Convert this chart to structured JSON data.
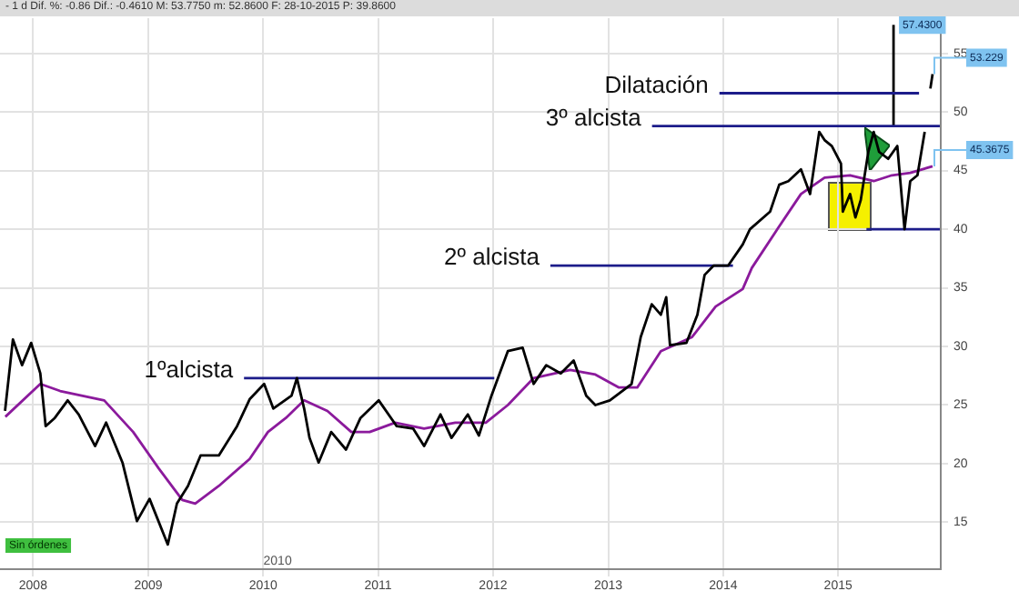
{
  "chart_data": {
    "type": "line",
    "subtitle": "- 1 d  Dif. %: -0.86  Dif.: -0.4610  M: 53.7750  m: 52.8600  F: 28-10-2015  P: 39.8600",
    "xlim": [
      "2007-09-18",
      "2015-11-23"
    ],
    "xticks": [
      {
        "value": "2008-01-01",
        "label": "2008"
      },
      {
        "value": "2009-01-01",
        "label": "2009"
      },
      {
        "value": "2010-01-01",
        "label": "2010"
      },
      {
        "value": "2011-01-01",
        "label": "2011"
      },
      {
        "value": "2012-01-01",
        "label": "2012"
      },
      {
        "value": "2013-01-01",
        "label": "2013"
      },
      {
        "value": "2014-01-01",
        "label": "2014"
      },
      {
        "value": "2015-01-01",
        "label": "2015"
      }
    ],
    "ylim": [
      11,
      58
    ],
    "yticks": [
      15,
      20,
      25,
      30,
      35,
      40,
      45,
      50,
      55
    ],
    "grid": true,
    "series": [
      {
        "color": "#000000",
        "x": [
          "2007-10-04",
          "2007-10-29",
          "2007-11-27",
          "2007-12-26",
          "2008-01-24",
          "2008-02-10",
          "2008-03-10",
          "2008-04-20",
          "2008-05-25",
          "2008-07-16",
          "2008-08-20",
          "2008-10-11",
          "2008-11-26",
          "2009-01-05",
          "2009-03-04",
          "2009-04-02",
          "2009-05-07",
          "2009-06-16",
          "2009-08-13",
          "2009-10-10",
          "2009-11-19",
          "2010-01-04",
          "2010-02-02",
          "2010-04-01",
          "2010-04-18",
          "2010-05-11",
          "2010-05-28",
          "2010-06-26",
          "2010-08-05",
          "2010-09-21",
          "2010-11-06",
          "2011-01-03",
          "2011-03-01",
          "2011-04-22",
          "2011-05-27",
          "2011-07-18",
          "2011-08-22",
          "2011-10-13",
          "2011-11-17",
          "2011-12-27",
          "2012-02-17",
          "2012-04-04",
          "2012-05-09",
          "2012-06-18",
          "2012-08-03",
          "2012-09-13",
          "2012-10-23",
          "2012-11-21",
          "2013-01-06",
          "2013-03-16",
          "2013-04-14",
          "2013-05-19",
          "2013-06-17",
          "2013-07-04",
          "2013-07-16",
          "2013-09-06",
          "2013-10-11",
          "2013-11-03",
          "2013-12-02",
          "2014-01-17",
          "2014-03-04",
          "2014-03-27",
          "2014-05-30",
          "2014-06-28",
          "2014-07-27",
          "2014-09-05",
          "2014-10-04",
          "2014-11-02",
          "2014-11-19",
          "2014-12-12",
          "2015-01-10",
          "2015-01-16",
          "2015-02-08",
          "2015-02-25",
          "2015-03-14",
          "2015-04-07",
          "2015-04-24",
          "2015-05-11",
          "2015-06-09",
          "2015-07-08",
          "2015-07-31",
          "2015-08-18",
          "2015-09-10",
          "2015-10-03",
          "2015-10-14",
          "2015-10-21",
          "2015-10-28"
        ],
        "values": [
          24.5,
          30.6,
          28.4,
          30.3,
          27.7,
          23.2,
          23.9,
          25.4,
          24.2,
          21.5,
          23.5,
          20.1,
          15.1,
          17.0,
          13.1,
          16.6,
          18.1,
          20.7,
          20.7,
          23.2,
          25.5,
          26.8,
          24.7,
          25.8,
          27.3,
          24.7,
          22.2,
          20.1,
          22.7,
          21.2,
          23.9,
          25.4,
          23.2,
          23.0,
          21.5,
          24.2,
          22.2,
          24.2,
          22.4,
          25.8,
          29.6,
          29.9,
          26.8,
          28.4,
          27.7,
          28.8,
          25.8,
          25.0,
          25.4,
          26.8,
          30.8,
          33.6,
          32.7,
          34.2,
          30.1,
          30.3,
          32.7,
          36.1,
          36.9,
          36.9,
          38.7,
          40.0,
          41.5,
          43.8,
          44.1,
          45.1,
          43.0,
          48.3,
          47.6,
          47.1,
          45.6,
          41.5,
          43.0,
          41.0,
          42.5,
          46.6,
          48.3,
          46.6,
          46.0,
          47.1,
          40.0,
          44.1,
          44.6,
          48.3,
          null,
          52.0,
          53.229
        ]
      },
      {
        "color": "#8b1a9c",
        "x": [
          "2007-10-05",
          "2008-01-24",
          "2008-03-27",
          "2008-08-14",
          "2008-11-14",
          "2009-02-03",
          "2009-04-19",
          "2009-05-30",
          "2009-08-13",
          "2009-11-19",
          "2010-01-16",
          "2010-03-14",
          "2010-05-11",
          "2010-07-24",
          "2010-10-08",
          "2010-12-05",
          "2011-02-24",
          "2011-05-27",
          "2011-09-03",
          "2011-12-09",
          "2012-02-17",
          "2012-05-09",
          "2012-09-02",
          "2012-11-21",
          "2013-02-04",
          "2013-04-03",
          "2013-06-17",
          "2013-09-24",
          "2013-12-08",
          "2014-03-04",
          "2014-04-02",
          "2014-06-22",
          "2014-09-05",
          "2014-11-19",
          "2015-02-08",
          "2015-04-24",
          "2015-06-21",
          "2015-08-18",
          "2015-10-28"
        ],
        "values": [
          24.0,
          26.8,
          26.2,
          25.4,
          22.7,
          19.6,
          16.9,
          16.6,
          18.1,
          20.4,
          22.7,
          23.9,
          25.4,
          24.5,
          22.7,
          22.7,
          23.5,
          23.0,
          23.5,
          23.5,
          25.0,
          27.3,
          28.0,
          27.6,
          26.5,
          26.5,
          29.6,
          30.8,
          33.4,
          34.9,
          36.7,
          40.0,
          43.0,
          44.4,
          44.6,
          44.1,
          44.6,
          44.8,
          45.3675
        ]
      },
      {
        "name": "1ºalcista",
        "color": "#1c1c8a",
        "x": [
          "2009-11-01",
          "2012-01-05"
        ],
        "values": [
          27.3,
          27.3
        ]
      },
      {
        "name": "2º alcista",
        "color": "#1c1c8a",
        "x": [
          "2012-07-01",
          "2014-02-01"
        ],
        "values": [
          36.9,
          36.9
        ]
      },
      {
        "name": "3º alcista",
        "color": "#1c1c8a",
        "x": [
          "2013-05-20",
          "2015-11-20"
        ],
        "values": [
          48.8,
          48.8
        ]
      },
      {
        "name": "Dilatación",
        "color": "#1c1c8a",
        "x": [
          "2013-12-20",
          "2015-09-15"
        ],
        "values": [
          51.6,
          51.6
        ]
      },
      {
        "color": "#1c1c8a",
        "x": [
          "2015-04-01",
          "2015-11-20"
        ],
        "values": [
          40,
          40
        ]
      },
      {
        "color": "#000000",
        "x": [
          "2015-06-26",
          "2015-06-26"
        ],
        "values": [
          48.8,
          57.43
        ]
      }
    ],
    "annotations": [
      {
        "text": "57.4300",
        "x": "2015-06-26",
        "y": 57.43
      },
      {
        "text": "53.229",
        "x": "2015-10-28",
        "y": 53.229
      },
      {
        "text": "45.3675",
        "x": "2015-10-28",
        "y": 45.3675
      },
      "Sin órdenes",
      "2010"
    ]
  }
}
